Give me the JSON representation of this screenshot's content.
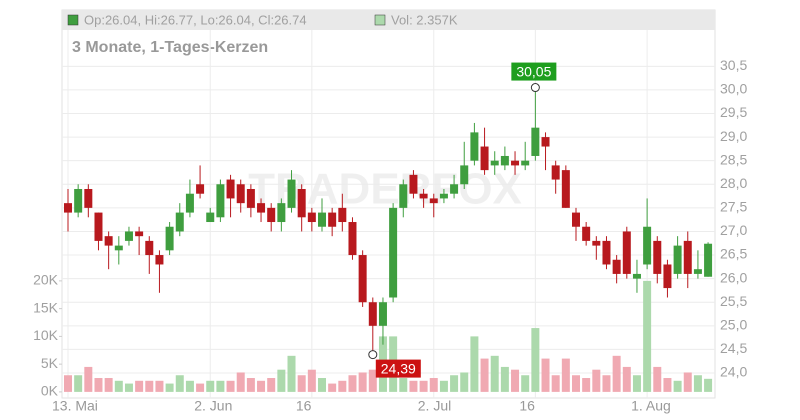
{
  "chart_data": {
    "type": "candlestick",
    "title": "3 Monate, 1-Tages-Kerzen",
    "ohlc_label": "Op:26.04, Hi:26.77, Lo:26.04, Cl:26.74",
    "volume_label": "Vol: 2.357K",
    "watermark": "TRADERFOX",
    "categories": [
      "13. Mai",
      null,
      null,
      null,
      null,
      null,
      null,
      null,
      null,
      null,
      null,
      null,
      null,
      null,
      "2. Jun",
      null,
      null,
      null,
      null,
      null,
      null,
      null,
      null,
      null,
      "16",
      null,
      null,
      null,
      null,
      null,
      null,
      null,
      null,
      null,
      null,
      null,
      "2. Jul",
      null,
      null,
      null,
      null,
      null,
      null,
      null,
      null,
      null,
      "16",
      null,
      null,
      null,
      null,
      null,
      null,
      null,
      null,
      null,
      null,
      "1. Aug",
      null,
      null,
      null,
      null,
      null,
      null
    ],
    "open": [
      27.6,
      27.4,
      27.9,
      27.4,
      26.9,
      26.6,
      26.8,
      27.0,
      26.8,
      26.5,
      26.6,
      27.0,
      27.4,
      28.0,
      27.2,
      27.3,
      28.1,
      28.0,
      27.9,
      27.6,
      27.5,
      27.2,
      27.5,
      27.9,
      27.4,
      27.1,
      27.4,
      27.5,
      27.2,
      26.5,
      25.5,
      25.0,
      25.6,
      27.5,
      28.2,
      27.8,
      27.7,
      27.7,
      27.8,
      28.0,
      28.5,
      28.8,
      28.4,
      28.4,
      28.5,
      28.4,
      28.6,
      29.0,
      28.4,
      28.3,
      27.4,
      27.1,
      26.8,
      26.8,
      26.4,
      27.0,
      26.0,
      26.3,
      26.8,
      26.3,
      26.1,
      26.8,
      26.1,
      26.04
    ],
    "high": [
      27.9,
      28.0,
      28.0,
      27.4,
      27.0,
      26.9,
      27.1,
      27.1,
      26.9,
      26.6,
      27.2,
      27.6,
      28.1,
      28.4,
      27.5,
      28.1,
      28.2,
      28.1,
      28.0,
      27.7,
      27.6,
      27.7,
      28.3,
      28.0,
      27.5,
      27.7,
      27.5,
      27.8,
      27.3,
      26.6,
      25.6,
      25.6,
      27.6,
      28.1,
      28.3,
      27.9,
      27.8,
      27.9,
      28.2,
      28.9,
      29.3,
      29.2,
      28.7,
      28.8,
      28.7,
      28.9,
      30.05,
      29.1,
      28.5,
      28.4,
      27.5,
      27.2,
      26.9,
      26.9,
      26.5,
      27.1,
      26.4,
      27.7,
      26.9,
      26.4,
      26.9,
      27.0,
      26.6,
      26.77
    ],
    "low": [
      27.0,
      27.3,
      27.3,
      26.6,
      26.2,
      26.3,
      26.7,
      26.5,
      26.1,
      25.7,
      26.5,
      26.9,
      27.3,
      27.7,
      27.2,
      27.2,
      27.3,
      27.4,
      27.3,
      27.2,
      27.0,
      27.0,
      27.4,
      27.0,
      27.0,
      27.0,
      26.9,
      27.0,
      26.4,
      25.4,
      24.39,
      24.6,
      25.5,
      27.3,
      27.7,
      27.5,
      27.3,
      27.6,
      27.7,
      27.9,
      28.4,
      28.2,
      28.2,
      28.3,
      28.2,
      28.3,
      28.5,
      28.3,
      27.8,
      27.5,
      26.8,
      26.7,
      26.4,
      26.2,
      25.9,
      26.0,
      25.7,
      26.2,
      25.9,
      25.6,
      26.0,
      25.8,
      26.0,
      26.04
    ],
    "close": [
      27.4,
      27.9,
      27.5,
      26.8,
      26.7,
      26.7,
      27.0,
      26.9,
      26.5,
      26.3,
      27.1,
      27.4,
      27.8,
      27.8,
      27.4,
      28.0,
      27.7,
      27.6,
      27.5,
      27.4,
      27.2,
      27.6,
      28.1,
      27.3,
      27.2,
      27.4,
      27.1,
      27.2,
      26.5,
      25.5,
      25.0,
      25.5,
      27.5,
      28.0,
      27.8,
      27.7,
      27.6,
      27.8,
      28.0,
      28.4,
      29.1,
      28.3,
      28.5,
      28.6,
      28.4,
      28.5,
      29.2,
      28.8,
      28.1,
      27.5,
      27.1,
      26.8,
      26.7,
      26.3,
      26.1,
      26.1,
      26.1,
      27.1,
      26.1,
      25.8,
      26.7,
      26.1,
      26.2,
      26.74
    ],
    "volume": [
      3000,
      3000,
      4500,
      2500,
      2500,
      2000,
      1500,
      2000,
      2000,
      2000,
      1500,
      3000,
      2000,
      1500,
      2000,
      2000,
      2000,
      3500,
      2500,
      2000,
      2500,
      4000,
      6500,
      3000,
      4000,
      2500,
      1500,
      2000,
      3000,
      3500,
      4000,
      10000,
      10000,
      2500,
      2000,
      2000,
      2500,
      2000,
      3000,
      3500,
      10000,
      6000,
      6500,
      4500,
      4000,
      3000,
      11500,
      6000,
      3000,
      6000,
      3000,
      2500,
      4000,
      3000,
      6500,
      4500,
      3000,
      20000,
      4500,
      2500,
      2000,
      3500,
      3000,
      2357
    ],
    "up_color": "#3f9e3f",
    "down_color": "#b8191e",
    "up_volume_color": "#acd9ac",
    "down_volume_color": "#f0a9b2",
    "ylim": [
      23.47,
      31.27
    ],
    "yticks": [
      {
        "value": 24.0,
        "label": "24,0"
      },
      {
        "value": 24.5,
        "label": "24,5"
      },
      {
        "value": 25.0,
        "label": "25,0"
      },
      {
        "value": 25.5,
        "label": "25,5"
      },
      {
        "value": 26.0,
        "label": "26,0"
      },
      {
        "value": 26.5,
        "label": "26,5"
      },
      {
        "value": 27.0,
        "label": "27,0"
      },
      {
        "value": 27.5,
        "label": "27,5"
      },
      {
        "value": 28.0,
        "label": "28,0"
      },
      {
        "value": 28.5,
        "label": "28,5"
      },
      {
        "value": 29.0,
        "label": "29,0"
      },
      {
        "value": 29.5,
        "label": "29,5"
      },
      {
        "value": 30.0,
        "label": "30,0"
      },
      {
        "value": 30.5,
        "label": "30,5"
      }
    ],
    "y2lim": [
      -1100,
      65200
    ],
    "y2ticks": [
      {
        "value": 0,
        "label": "0K"
      },
      {
        "value": 5000,
        "label": "5K"
      },
      {
        "value": 10000,
        "label": "10K"
      },
      {
        "value": 15000,
        "label": "15K"
      },
      {
        "value": 20000,
        "label": "20K"
      }
    ],
    "annotations": [
      {
        "x": 46,
        "value": 30.05,
        "label": "30,05",
        "color": "#1e9e1e"
      },
      {
        "x": 30,
        "value": 24.39,
        "label": "24,39",
        "color": "#cc1111"
      }
    ],
    "grid": true
  }
}
